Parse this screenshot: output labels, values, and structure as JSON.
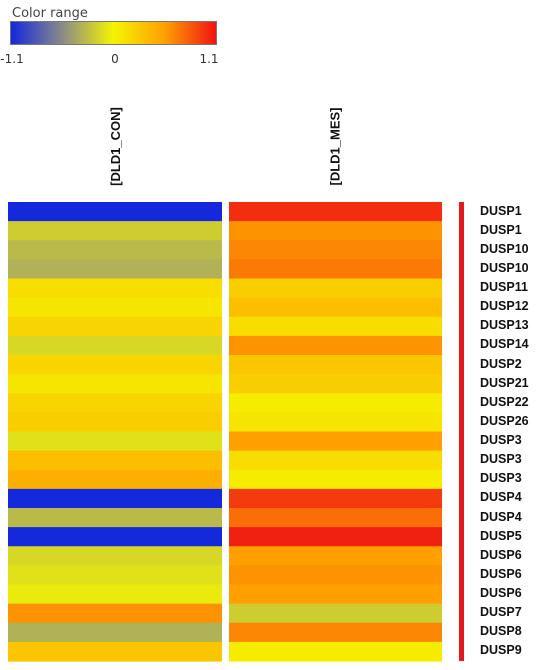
{
  "chart_data": {
    "type": "heatmap",
    "legend": {
      "title": "Color range",
      "ticks": [
        "-1.1",
        "0",
        "1.1"
      ],
      "min": -1.1,
      "max": 1.1
    },
    "columns": [
      "[DLD1_CON]",
      "[DLD1_MES]"
    ],
    "rows": [
      {
        "gene": "DUSP1",
        "values": [
          -1.1,
          1.0
        ]
      },
      {
        "gene": "DUSP1",
        "values": [
          -0.2,
          0.6
        ]
      },
      {
        "gene": "DUSP10",
        "values": [
          -0.3,
          0.65
        ]
      },
      {
        "gene": "DUSP10",
        "values": [
          -0.35,
          0.7
        ]
      },
      {
        "gene": "DUSP11",
        "values": [
          0.15,
          0.25
        ]
      },
      {
        "gene": "DUSP12",
        "values": [
          0.1,
          0.35
        ]
      },
      {
        "gene": "DUSP13",
        "values": [
          0.2,
          0.15
        ]
      },
      {
        "gene": "DUSP14",
        "values": [
          -0.15,
          0.6
        ]
      },
      {
        "gene": "DUSP2",
        "values": [
          0.2,
          0.3
        ]
      },
      {
        "gene": "DUSP21",
        "values": [
          0.1,
          0.25
        ]
      },
      {
        "gene": "DUSP22",
        "values": [
          0.2,
          0.05
        ]
      },
      {
        "gene": "DUSP26",
        "values": [
          0.25,
          0.1
        ]
      },
      {
        "gene": "DUSP3",
        "values": [
          -0.1,
          0.55
        ]
      },
      {
        "gene": "DUSP3",
        "values": [
          0.35,
          0.15
        ]
      },
      {
        "gene": "DUSP3",
        "values": [
          0.45,
          0.05
        ]
      },
      {
        "gene": "DUSP4",
        "values": [
          -1.1,
          0.95
        ]
      },
      {
        "gene": "DUSP4",
        "values": [
          -0.3,
          0.75
        ]
      },
      {
        "gene": "DUSP5",
        "values": [
          -1.1,
          1.05
        ]
      },
      {
        "gene": "DUSP6",
        "values": [
          -0.15,
          0.55
        ]
      },
      {
        "gene": "DUSP6",
        "values": [
          -0.1,
          0.6
        ]
      },
      {
        "gene": "DUSP6",
        "values": [
          -0.05,
          0.55
        ]
      },
      {
        "gene": "DUSP7",
        "values": [
          0.6,
          -0.2
        ]
      },
      {
        "gene": "DUSP8",
        "values": [
          -0.35,
          0.65
        ]
      },
      {
        "gene": "DUSP9",
        "values": [
          0.3,
          0.05
        ]
      }
    ],
    "colors": {
      "low": "#1428dc",
      "mid_low": "#8a8a8a",
      "zero": "#f4f400",
      "mid_high": "#ffa000",
      "high": "#f01414"
    }
  }
}
